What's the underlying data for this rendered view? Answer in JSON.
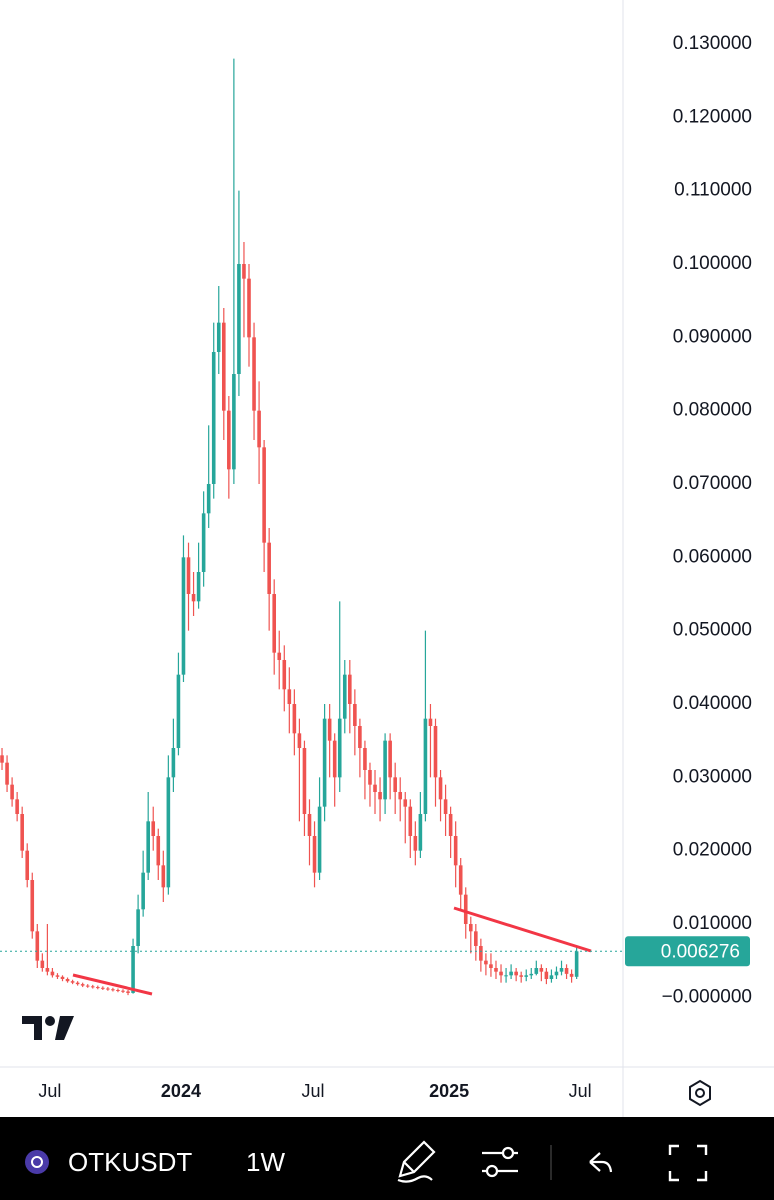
{
  "chart_data": {
    "type": "candlestick",
    "symbol": "OTKUSDT",
    "interval": "1W",
    "up_color": "#26a69a",
    "down_color": "#ef5350",
    "ylim": [
      -0.0095,
      0.136
    ],
    "xlim": [
      -0.4,
      123
    ],
    "yticks": [
      {
        "value": 0.13,
        "label": "0.130000"
      },
      {
        "value": 0.12,
        "label": "0.120000"
      },
      {
        "value": 0.11,
        "label": "0.110000"
      },
      {
        "value": 0.1,
        "label": "0.100000"
      },
      {
        "value": 0.09,
        "label": "0.090000"
      },
      {
        "value": 0.08,
        "label": "0.080000"
      },
      {
        "value": 0.07,
        "label": "0.070000"
      },
      {
        "value": 0.06,
        "label": "0.060000"
      },
      {
        "value": 0.05,
        "label": "0.050000"
      },
      {
        "value": 0.04,
        "label": "0.040000"
      },
      {
        "value": 0.03,
        "label": "0.030000"
      },
      {
        "value": 0.02,
        "label": "0.020000"
      },
      {
        "value": 0.01,
        "label": "0.010000"
      },
      {
        "value": 0,
        "label": "−0.000000"
      }
    ],
    "xticks": [
      {
        "value": 9.5,
        "label": "Jul"
      },
      {
        "value": 35.5,
        "label": "2024"
      },
      {
        "value": 61.7,
        "label": "Jul"
      },
      {
        "value": 88.7,
        "label": "2025"
      },
      {
        "value": 114.7,
        "label": "Jul"
      }
    ],
    "grid": true,
    "open": [
      0.033,
      0.032,
      0.029,
      0.027,
      0.025,
      0.02,
      0.016,
      0.009,
      0.005,
      0.004,
      0.0035,
      0.003,
      0.0028,
      0.0025,
      0.0022,
      0.002,
      0.0018,
      0.0016,
      0.0015,
      0.0014,
      0.0013,
      0.0012,
      0.0011,
      0.001,
      0.0009,
      0.0008,
      0.0006,
      0.007,
      0.012,
      0.017,
      0.024,
      0.022,
      0.018,
      0.015,
      0.03,
      0.034,
      0.044,
      0.06,
      0.055,
      0.054,
      0.058,
      0.066,
      0.07,
      0.088,
      0.092,
      0.08,
      0.072,
      0.085,
      0.1,
      0.098,
      0.09,
      0.08,
      0.075,
      0.062,
      0.055,
      0.047,
      0.046,
      0.042,
      0.04,
      0.036,
      0.034,
      0.025,
      0.022,
      0.017,
      0.026,
      0.038,
      0.035,
      0.03,
      0.038,
      0.044,
      0.04,
      0.037,
      0.034,
      0.031,
      0.029,
      0.028,
      0.027,
      0.035,
      0.03,
      0.028,
      0.027,
      0.026,
      0.022,
      0.02,
      0.025,
      0.038,
      0.037,
      0.03,
      0.027,
      0.025,
      0.022,
      0.018,
      0.014,
      0.01,
      0.009,
      0.007,
      0.005,
      0.0045,
      0.004,
      0.0035,
      0.003,
      0.003,
      0.0035,
      0.003,
      0.0028,
      0.003,
      0.0032,
      0.004,
      0.0035,
      0.0025,
      0.003,
      0.0035,
      0.004,
      0.0032,
      0.0028
    ],
    "high": [
      0.034,
      0.033,
      0.03,
      0.028,
      0.026,
      0.021,
      0.017,
      0.01,
      0.006,
      0.01,
      0.004,
      0.0033,
      0.003,
      0.0027,
      0.0024,
      0.0022,
      0.002,
      0.0018,
      0.0017,
      0.0016,
      0.0015,
      0.0014,
      0.0013,
      0.0012,
      0.0011,
      0.001,
      0.008,
      0.014,
      0.02,
      0.028,
      0.026,
      0.023,
      0.02,
      0.033,
      0.038,
      0.047,
      0.063,
      0.062,
      0.058,
      0.062,
      0.069,
      0.078,
      0.092,
      0.097,
      0.094,
      0.082,
      0.128,
      0.11,
      0.103,
      0.1,
      0.092,
      0.084,
      0.076,
      0.064,
      0.057,
      0.05,
      0.048,
      0.045,
      0.042,
      0.038,
      0.035,
      0.027,
      0.024,
      0.03,
      0.04,
      0.04,
      0.036,
      0.054,
      0.046,
      0.046,
      0.042,
      0.038,
      0.035,
      0.032,
      0.031,
      0.03,
      0.036,
      0.036,
      0.032,
      0.03,
      0.028,
      0.027,
      0.024,
      0.028,
      0.05,
      0.04,
      0.038,
      0.031,
      0.029,
      0.026,
      0.024,
      0.019,
      0.015,
      0.011,
      0.01,
      0.008,
      0.006,
      0.006,
      0.005,
      0.0045,
      0.004,
      0.0045,
      0.004,
      0.0035,
      0.0038,
      0.004,
      0.005,
      0.0045,
      0.004,
      0.0038,
      0.0042,
      0.005,
      0.0045,
      0.0038,
      0.0068
    ],
    "low": [
      0.031,
      0.028,
      0.026,
      0.024,
      0.019,
      0.015,
      0.008,
      0.004,
      0.0035,
      0.003,
      0.0027,
      0.0025,
      0.0022,
      0.002,
      0.0018,
      0.0016,
      0.0014,
      0.0013,
      0.0012,
      0.0011,
      0.001,
      0.0009,
      0.0008,
      0.0007,
      0.0006,
      0.0003,
      0.0005,
      0.006,
      0.011,
      0.016,
      0.02,
      0.016,
      0.013,
      0.014,
      0.028,
      0.033,
      0.043,
      0.05,
      0.052,
      0.053,
      0.056,
      0.064,
      0.068,
      0.085,
      0.076,
      0.068,
      0.07,
      0.082,
      0.09,
      0.086,
      0.076,
      0.07,
      0.058,
      0.05,
      0.044,
      0.042,
      0.039,
      0.036,
      0.033,
      0.024,
      0.022,
      0.018,
      0.015,
      0.016,
      0.024,
      0.03,
      0.026,
      0.028,
      0.036,
      0.036,
      0.033,
      0.03,
      0.027,
      0.026,
      0.025,
      0.024,
      0.025,
      0.027,
      0.025,
      0.024,
      0.021,
      0.019,
      0.018,
      0.019,
      0.024,
      0.03,
      0.026,
      0.024,
      0.022,
      0.019,
      0.015,
      0.012,
      0.008,
      0.006,
      0.005,
      0.0035,
      0.003,
      0.0028,
      0.0025,
      0.002,
      0.002,
      0.0025,
      0.0022,
      0.002,
      0.0022,
      0.0025,
      0.003,
      0.0022,
      0.0018,
      0.002,
      0.0025,
      0.003,
      0.0025,
      0.002,
      0.0025
    ],
    "close": [
      0.032,
      0.029,
      0.027,
      0.025,
      0.02,
      0.016,
      0.009,
      0.005,
      0.004,
      0.0035,
      0.003,
      0.0028,
      0.0025,
      0.0022,
      0.002,
      0.0018,
      0.0016,
      0.0015,
      0.0014,
      0.0013,
      0.0012,
      0.0011,
      0.001,
      0.0009,
      0.0008,
      0.0006,
      0.007,
      0.012,
      0.017,
      0.024,
      0.022,
      0.018,
      0.015,
      0.03,
      0.034,
      0.044,
      0.06,
      0.055,
      0.054,
      0.058,
      0.066,
      0.07,
      0.088,
      0.092,
      0.08,
      0.072,
      0.085,
      0.1,
      0.098,
      0.09,
      0.08,
      0.075,
      0.062,
      0.055,
      0.047,
      0.046,
      0.042,
      0.04,
      0.036,
      0.034,
      0.025,
      0.022,
      0.017,
      0.026,
      0.038,
      0.035,
      0.03,
      0.038,
      0.044,
      0.04,
      0.037,
      0.034,
      0.031,
      0.029,
      0.028,
      0.027,
      0.035,
      0.03,
      0.028,
      0.027,
      0.026,
      0.022,
      0.02,
      0.025,
      0.038,
      0.037,
      0.03,
      0.027,
      0.025,
      0.022,
      0.018,
      0.014,
      0.01,
      0.009,
      0.007,
      0.005,
      0.0045,
      0.004,
      0.0035,
      0.003,
      0.003,
      0.0035,
      0.003,
      0.0028,
      0.003,
      0.0032,
      0.004,
      0.0035,
      0.0025,
      0.003,
      0.0035,
      0.004,
      0.0032,
      0.0028,
      0.006276
    ]
  }
}
